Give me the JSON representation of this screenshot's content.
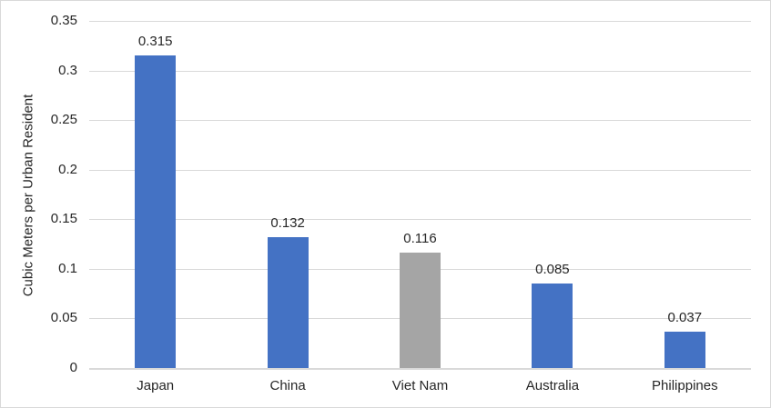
{
  "chart_data": {
    "type": "bar",
    "title": "",
    "xlabel": "",
    "ylabel": "Cubic Meters per Urban Resident",
    "categories": [
      "Japan",
      "China",
      "Viet Nam",
      "Australia",
      "Philippines"
    ],
    "values": [
      0.315,
      0.132,
      0.116,
      0.085,
      0.037
    ],
    "data_labels": [
      "0.315",
      "0.132",
      "0.116",
      "0.085",
      "0.037"
    ],
    "bar_colors": [
      "#4472C4",
      "#4472C4",
      "#A5A5A5",
      "#4472C4",
      "#4472C4"
    ],
    "ylim": [
      0,
      0.35
    ],
    "y_ticks": [
      {
        "label": "0",
        "value": 0
      },
      {
        "label": "0.05",
        "value": 0.05
      },
      {
        "label": "0.1",
        "value": 0.1
      },
      {
        "label": "0.15",
        "value": 0.15
      },
      {
        "label": "0.2",
        "value": 0.2
      },
      {
        "label": "0.25",
        "value": 0.25
      },
      {
        "label": "0.3",
        "value": 0.3
      },
      {
        "label": "0.35",
        "value": 0.35
      }
    ],
    "grid": true,
    "legend": false
  },
  "colors": {
    "bar_primary": "#4472C4",
    "bar_highlight": "#A5A5A5",
    "gridline": "#D9D9D9",
    "axis_line": "#D9D9D9",
    "text": "#262626",
    "background": "#FFFFFF",
    "chart_border": "#D9D9D9"
  }
}
